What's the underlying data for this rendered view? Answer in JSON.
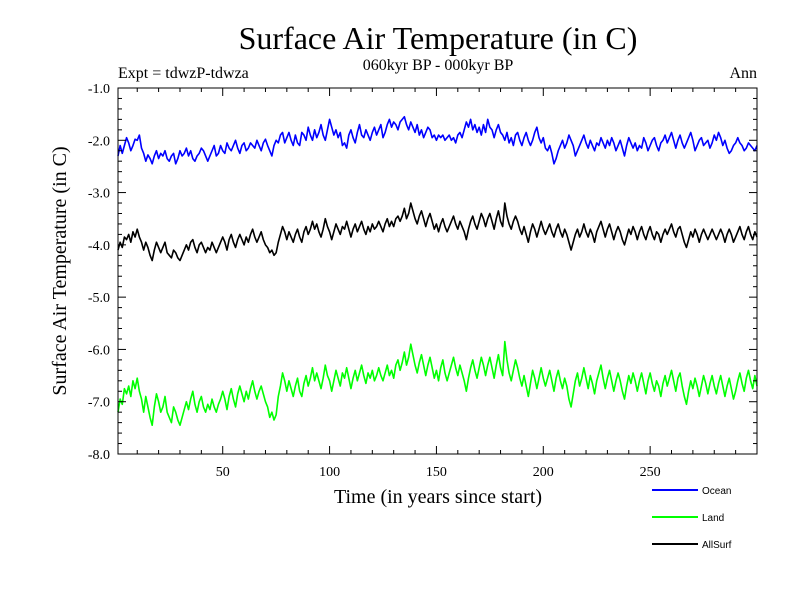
{
  "chart_data": {
    "type": "line",
    "title": "Surface Air Temperature (in C)",
    "subtitle": "060kyr BP - 000kyr BP",
    "experiment": "Expt = tdwzP-tdwza",
    "season": "Ann",
    "xlabel": "Time (in years since start)",
    "ylabel": "Surface Air Temperature (in C)",
    "xlim": [
      1,
      300
    ],
    "ylim": [
      -8.0,
      -1.0
    ],
    "xticks": [
      50,
      100,
      150,
      200,
      250
    ],
    "xtick_labels": [
      "50",
      "100",
      "150",
      "200",
      "250"
    ],
    "yticks": [
      -8.0,
      -7.0,
      -6.0,
      -5.0,
      -4.0,
      -3.0,
      -2.0,
      -1.0
    ],
    "ytick_labels": [
      "-8.0",
      "-7.0",
      "-6.0",
      "-5.0",
      "-4.0",
      "-3.0",
      "-2.0",
      "-1.0"
    ],
    "grid": false,
    "legend_position": "bottom-right, outside plot",
    "series": [
      {
        "name": "Ocean",
        "color": "#0000ff",
        "x_start": 1,
        "x_step": 1,
        "values": [
          -2.3,
          -2.1,
          -2.25,
          -2.1,
          -1.95,
          -2.05,
          -2.2,
          -2.1,
          -1.98,
          -2.0,
          -1.9,
          -2.15,
          -2.25,
          -2.4,
          -2.28,
          -2.35,
          -2.45,
          -2.3,
          -2.2,
          -2.35,
          -2.25,
          -2.3,
          -2.2,
          -2.35,
          -2.4,
          -2.3,
          -2.25,
          -2.45,
          -2.35,
          -2.2,
          -2.3,
          -2.25,
          -2.15,
          -2.3,
          -2.2,
          -2.35,
          -2.4,
          -2.3,
          -2.25,
          -2.15,
          -2.2,
          -2.3,
          -2.4,
          -2.3,
          -2.2,
          -2.1,
          -2.3,
          -2.25,
          -2.1,
          -2.2,
          -2.25,
          -2.05,
          -2.15,
          -2.2,
          -2.1,
          -2.0,
          -2.15,
          -2.25,
          -2.1,
          -2.05,
          -2.2,
          -2.15,
          -2.05,
          -2.1,
          -2.15,
          -2.0,
          -2.1,
          -2.2,
          -2.05,
          -1.98,
          -2.1,
          -2.2,
          -2.3,
          -2.1,
          -2.0,
          -2.05,
          -1.9,
          -1.85,
          -2.05,
          -1.95,
          -1.85,
          -2.0,
          -2.1,
          -1.9,
          -2.05,
          -2.1,
          -1.85,
          -1.9,
          -2.0,
          -1.75,
          -1.9,
          -2.0,
          -1.8,
          -1.95,
          -1.85,
          -1.7,
          -1.9,
          -2.0,
          -1.8,
          -1.6,
          -1.75,
          -1.9,
          -1.8,
          -1.95,
          -1.85,
          -2.1,
          -2.05,
          -2.15,
          -1.9,
          -1.8,
          -1.95,
          -2.05,
          -1.85,
          -1.7,
          -1.9,
          -1.95,
          -1.8,
          -1.9,
          -2.0,
          -1.85,
          -1.75,
          -1.9,
          -1.8,
          -1.7,
          -1.95,
          -1.85,
          -1.7,
          -1.6,
          -1.75,
          -1.65,
          -1.7,
          -1.8,
          -1.65,
          -1.6,
          -1.55,
          -1.7,
          -1.8,
          -1.65,
          -1.75,
          -1.85,
          -1.7,
          -1.9,
          -1.8,
          -1.95,
          -1.85,
          -1.75,
          -1.8,
          -1.95,
          -1.9,
          -2.0,
          -1.9,
          -1.95,
          -1.9,
          -2.0,
          -1.95,
          -1.9,
          -2.0,
          -1.95,
          -2.05,
          -1.9,
          -1.85,
          -1.95,
          -1.8,
          -1.65,
          -1.75,
          -1.6,
          -1.8,
          -1.7,
          -1.85,
          -1.75,
          -1.9,
          -1.7,
          -1.85,
          -1.6,
          -1.75,
          -1.8,
          -1.95,
          -1.8,
          -1.7,
          -1.85,
          -1.9,
          -2.0,
          -1.85,
          -2.05,
          -1.95,
          -2.1,
          -1.9,
          -1.85,
          -2.0,
          -2.1,
          -1.95,
          -1.85,
          -2.0,
          -2.1,
          -2.0,
          -1.85,
          -1.75,
          -1.95,
          -2.05,
          -1.95,
          -2.15,
          -2.2,
          -2.1,
          -2.25,
          -2.45,
          -2.35,
          -2.2,
          -2.1,
          -2.0,
          -2.15,
          -2.05,
          -1.9,
          -2.0,
          -2.1,
          -2.3,
          -2.2,
          -2.1,
          -2.0,
          -1.9,
          -2.05,
          -2.15,
          -2.0,
          -2.1,
          -2.2,
          -2.05,
          -2.1,
          -1.95,
          -2.05,
          -2.15,
          -2.0,
          -2.1,
          -1.95,
          -2.05,
          -2.2,
          -2.1,
          -2.0,
          -2.15,
          -2.3,
          -2.1,
          -1.95,
          -2.05,
          -2.15,
          -2.05,
          -2.2,
          -2.1,
          -2.15,
          -1.95,
          -2.05,
          -2.2,
          -2.1,
          -2.0,
          -1.95,
          -2.1,
          -2.2,
          -2.05,
          -2.0,
          -1.9,
          -2.05,
          -1.95,
          -1.85,
          -2.0,
          -2.15,
          -2.0,
          -1.9,
          -2.05,
          -2.15,
          -2.05,
          -1.95,
          -1.85,
          -2.0,
          -2.2,
          -2.1,
          -2.0,
          -1.95,
          -2.1,
          -2.05,
          -2.0,
          -2.15,
          -2.05,
          -1.9,
          -2.0,
          -1.85,
          -1.95,
          -2.1,
          -2.0,
          -2.15,
          -2.25,
          -2.2,
          -2.1,
          -2.05,
          -1.95,
          -2.05,
          -2.1,
          -2.2,
          -2.15,
          -2.05,
          -2.1,
          -2.15,
          -2.2,
          -2.1
        ]
      },
      {
        "name": "Land",
        "color": "#00ff00",
        "x_start": 1,
        "x_step": 1,
        "values": [
          -7.2,
          -6.95,
          -7.05,
          -6.75,
          -6.85,
          -6.7,
          -6.9,
          -6.6,
          -6.75,
          -6.55,
          -6.8,
          -6.95,
          -7.2,
          -6.9,
          -7.1,
          -7.3,
          -7.45,
          -7.1,
          -6.85,
          -7.0,
          -7.2,
          -7.1,
          -6.9,
          -7.2,
          -7.3,
          -7.4,
          -7.1,
          -7.2,
          -7.35,
          -7.45,
          -7.3,
          -7.15,
          -7.0,
          -7.15,
          -6.95,
          -6.8,
          -7.05,
          -7.2,
          -7.0,
          -6.9,
          -7.1,
          -7.2,
          -7.05,
          -7.15,
          -6.95,
          -7.1,
          -7.2,
          -7.05,
          -6.95,
          -6.8,
          -6.95,
          -7.15,
          -6.9,
          -6.75,
          -6.95,
          -7.1,
          -6.85,
          -6.7,
          -6.85,
          -7.0,
          -6.8,
          -6.95,
          -6.75,
          -6.6,
          -6.8,
          -6.95,
          -6.8,
          -6.7,
          -6.85,
          -7.0,
          -7.1,
          -7.3,
          -7.2,
          -7.35,
          -7.25,
          -6.9,
          -6.7,
          -6.45,
          -6.6,
          -6.8,
          -6.6,
          -6.75,
          -6.9,
          -6.7,
          -6.55,
          -6.8,
          -6.9,
          -6.65,
          -6.5,
          -6.7,
          -6.55,
          -6.35,
          -6.6,
          -6.45,
          -6.6,
          -6.75,
          -6.55,
          -6.3,
          -6.5,
          -6.6,
          -6.8,
          -6.6,
          -6.4,
          -6.55,
          -6.7,
          -6.45,
          -6.55,
          -6.35,
          -6.55,
          -6.75,
          -6.55,
          -6.4,
          -6.6,
          -6.45,
          -6.3,
          -6.5,
          -6.65,
          -6.45,
          -6.55,
          -6.4,
          -6.6,
          -6.5,
          -6.35,
          -6.5,
          -6.6,
          -6.45,
          -6.3,
          -6.5,
          -6.4,
          -6.55,
          -6.3,
          -6.2,
          -6.4,
          -6.25,
          -6.05,
          -6.3,
          -6.15,
          -5.9,
          -6.1,
          -6.3,
          -6.45,
          -6.25,
          -6.1,
          -6.3,
          -6.5,
          -6.3,
          -6.15,
          -6.35,
          -6.55,
          -6.4,
          -6.6,
          -6.35,
          -6.2,
          -6.45,
          -6.6,
          -6.45,
          -6.3,
          -6.15,
          -6.35,
          -6.5,
          -6.3,
          -6.45,
          -6.6,
          -6.8,
          -6.55,
          -6.35,
          -6.2,
          -6.4,
          -6.55,
          -6.35,
          -6.15,
          -6.3,
          -6.5,
          -6.3,
          -6.15,
          -6.35,
          -6.55,
          -6.3,
          -6.1,
          -6.35,
          -6.5,
          -5.85,
          -6.2,
          -6.45,
          -6.6,
          -6.4,
          -6.2,
          -6.35,
          -6.55,
          -6.7,
          -6.5,
          -6.7,
          -6.9,
          -6.65,
          -6.4,
          -6.55,
          -6.75,
          -6.55,
          -6.35,
          -6.55,
          -6.7,
          -6.55,
          -6.4,
          -6.6,
          -6.8,
          -6.55,
          -6.4,
          -6.6,
          -6.75,
          -6.55,
          -6.7,
          -6.95,
          -7.1,
          -6.85,
          -6.6,
          -6.45,
          -6.7,
          -6.55,
          -6.35,
          -6.55,
          -6.75,
          -6.5,
          -6.65,
          -6.85,
          -6.6,
          -6.45,
          -6.3,
          -6.55,
          -6.75,
          -6.55,
          -6.4,
          -6.6,
          -6.8,
          -6.6,
          -6.45,
          -6.6,
          -6.8,
          -6.95,
          -6.7,
          -6.5,
          -6.65,
          -6.45,
          -6.6,
          -6.8,
          -6.6,
          -6.45,
          -6.65,
          -6.85,
          -6.6,
          -6.45,
          -6.65,
          -6.8,
          -6.6,
          -6.7,
          -6.9,
          -6.65,
          -6.5,
          -6.7,
          -6.55,
          -6.4,
          -6.6,
          -6.8,
          -6.55,
          -6.45,
          -6.7,
          -6.9,
          -7.05,
          -6.8,
          -6.6,
          -6.75,
          -6.55,
          -6.7,
          -6.9,
          -6.7,
          -6.5,
          -6.65,
          -6.85,
          -6.65,
          -6.5,
          -6.7,
          -6.85,
          -6.65,
          -6.5,
          -6.7,
          -6.9,
          -6.7,
          -6.55,
          -6.75,
          -6.95,
          -6.8,
          -6.6,
          -6.45,
          -6.65,
          -6.8,
          -6.55,
          -6.4,
          -6.6,
          -6.75,
          -6.5,
          -6.7
        ]
      },
      {
        "name": "AllSurf",
        "color": "#000000",
        "x_start": 1,
        "x_step": 1,
        "values": [
          -4.1,
          -3.95,
          -4.05,
          -3.85,
          -3.9,
          -3.8,
          -3.95,
          -3.75,
          -3.85,
          -3.7,
          -3.85,
          -3.95,
          -4.1,
          -3.95,
          -4.05,
          -4.2,
          -4.3,
          -4.1,
          -3.95,
          -4.05,
          -4.15,
          -4.05,
          -3.95,
          -4.15,
          -4.2,
          -4.25,
          -4.1,
          -4.15,
          -4.25,
          -4.3,
          -4.2,
          -4.1,
          -4.0,
          -4.1,
          -3.95,
          -3.9,
          -4.05,
          -4.15,
          -4.0,
          -3.95,
          -4.05,
          -4.15,
          -4.05,
          -4.1,
          -3.95,
          -4.05,
          -4.15,
          -4.05,
          -3.95,
          -3.85,
          -3.95,
          -4.1,
          -3.9,
          -3.8,
          -3.95,
          -4.05,
          -3.9,
          -3.8,
          -3.9,
          -4.0,
          -3.85,
          -3.95,
          -3.8,
          -3.7,
          -3.85,
          -3.95,
          -3.85,
          -3.75,
          -3.9,
          -4.0,
          -4.05,
          -4.15,
          -4.1,
          -4.2,
          -4.15,
          -3.95,
          -3.8,
          -3.65,
          -3.75,
          -3.9,
          -3.75,
          -3.85,
          -3.95,
          -3.8,
          -3.7,
          -3.85,
          -3.95,
          -3.75,
          -3.65,
          -3.8,
          -3.7,
          -3.55,
          -3.7,
          -3.6,
          -3.75,
          -3.85,
          -3.7,
          -3.5,
          -3.65,
          -3.75,
          -3.9,
          -3.75,
          -3.6,
          -3.7,
          -3.8,
          -3.65,
          -3.7,
          -3.55,
          -3.7,
          -3.85,
          -3.7,
          -3.6,
          -3.75,
          -3.65,
          -3.55,
          -3.7,
          -3.8,
          -3.65,
          -3.75,
          -3.6,
          -3.7,
          -3.65,
          -3.55,
          -3.65,
          -3.75,
          -3.6,
          -3.5,
          -3.65,
          -3.55,
          -3.65,
          -3.5,
          -3.45,
          -3.55,
          -3.45,
          -3.3,
          -3.5,
          -3.4,
          -3.2,
          -3.35,
          -3.5,
          -3.6,
          -3.45,
          -3.35,
          -3.5,
          -3.65,
          -3.5,
          -3.4,
          -3.55,
          -3.7,
          -3.6,
          -3.75,
          -3.6,
          -3.5,
          -3.65,
          -3.75,
          -3.65,
          -3.55,
          -3.45,
          -3.6,
          -3.7,
          -3.55,
          -3.65,
          -3.75,
          -3.9,
          -3.7,
          -3.55,
          -3.45,
          -3.6,
          -3.7,
          -3.55,
          -3.4,
          -3.5,
          -3.65,
          -3.5,
          -3.4,
          -3.55,
          -3.7,
          -3.5,
          -3.35,
          -3.55,
          -3.65,
          -3.2,
          -3.45,
          -3.6,
          -3.7,
          -3.55,
          -3.45,
          -3.55,
          -3.7,
          -3.8,
          -3.65,
          -3.8,
          -3.95,
          -3.75,
          -3.6,
          -3.7,
          -3.85,
          -3.7,
          -3.55,
          -3.7,
          -3.8,
          -3.7,
          -3.6,
          -3.75,
          -3.85,
          -3.7,
          -3.6,
          -3.75,
          -3.85,
          -3.7,
          -3.8,
          -3.95,
          -4.1,
          -3.95,
          -3.8,
          -3.7,
          -3.85,
          -3.75,
          -3.6,
          -3.75,
          -3.85,
          -3.7,
          -3.8,
          -3.95,
          -3.75,
          -3.65,
          -3.55,
          -3.7,
          -3.85,
          -3.7,
          -3.6,
          -3.75,
          -3.9,
          -3.75,
          -3.65,
          -3.75,
          -3.9,
          -4.0,
          -3.85,
          -3.7,
          -3.8,
          -3.65,
          -3.75,
          -3.9,
          -3.75,
          -3.65,
          -3.8,
          -3.9,
          -3.75,
          -3.65,
          -3.8,
          -3.9,
          -3.75,
          -3.8,
          -3.95,
          -3.8,
          -3.7,
          -3.8,
          -3.7,
          -3.6,
          -3.75,
          -3.85,
          -3.7,
          -3.65,
          -3.8,
          -3.95,
          -4.05,
          -3.9,
          -3.75,
          -3.85,
          -3.7,
          -3.8,
          -3.95,
          -3.8,
          -3.7,
          -3.8,
          -3.9,
          -3.8,
          -3.7,
          -3.8,
          -3.9,
          -3.8,
          -3.7,
          -3.8,
          -3.95,
          -3.8,
          -3.7,
          -3.8,
          -3.95,
          -3.85,
          -3.75,
          -3.65,
          -3.8,
          -3.9,
          -3.75,
          -3.65,
          -3.8,
          -3.9,
          -3.75,
          -3.85
        ]
      }
    ]
  }
}
